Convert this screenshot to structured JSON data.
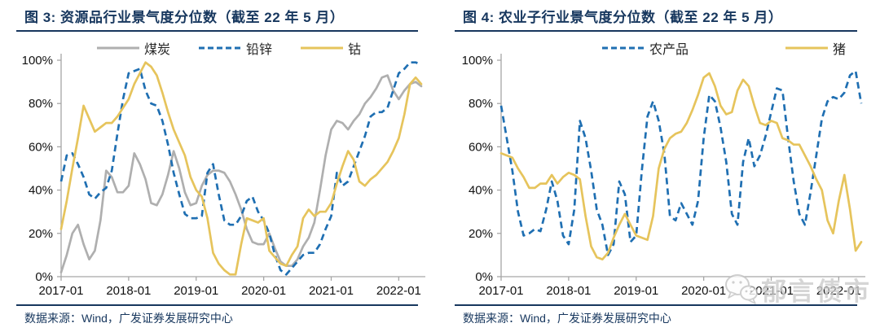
{
  "colors": {
    "title_navy": "#17375E",
    "axis_gray": "#A6A6A6",
    "tick_label": "#111111",
    "coal_gray": "#AFAFAF",
    "blue": "#1F6FB2",
    "yellow": "#E6C45C",
    "watermark_gray": "#CBCBCB"
  },
  "watermark": {
    "icon": "wechat-chat-bubbles-icon",
    "text": "郁言债市"
  },
  "chart_data": [
    {
      "type": "line",
      "title": "图 3:  资源品行业景气度分位数（截至 22 年 5 月）",
      "source": "数据来源：Wind，广发证券发展研究中心",
      "x_monthly_range": [
        "2017-01",
        "2022-05"
      ],
      "x_tick_labels": [
        "2017-01",
        "2018-01",
        "2019-01",
        "2020-01",
        "2021-01",
        "2022-01"
      ],
      "y_tick_labels": [
        "0%",
        "20%",
        "40%",
        "60%",
        "80%",
        "100%"
      ],
      "ylim": [
        0,
        100
      ],
      "grid": false,
      "legend_position": "top",
      "series": [
        {
          "name": "煤炭",
          "color": "#AFAFAF",
          "dash": "solid",
          "values": [
            2,
            10,
            20,
            24,
            15,
            8,
            12,
            26,
            49,
            46,
            39,
            39,
            42,
            57,
            52,
            45,
            34,
            33,
            38,
            47,
            58,
            50,
            39,
            33,
            34,
            42,
            47,
            49,
            49,
            48,
            44,
            38,
            31,
            22,
            16,
            15,
            15,
            20,
            13,
            7,
            5,
            5,
            8,
            14,
            18,
            25,
            40,
            56,
            68,
            72,
            71,
            68,
            72,
            75,
            80,
            83,
            87,
            92,
            93,
            86,
            82,
            86,
            89,
            90,
            88
          ]
        },
        {
          "name": "铅锌",
          "color": "#1F6FB2",
          "dash": "dashed",
          "values": [
            44,
            56,
            57,
            52,
            46,
            38,
            36,
            39,
            41,
            49,
            66,
            82,
            94,
            95,
            96,
            86,
            80,
            79,
            72,
            61,
            48,
            38,
            29,
            27,
            27,
            28,
            48,
            52,
            38,
            26,
            24,
            24,
            28,
            35,
            37,
            30,
            26,
            20,
            10,
            3,
            1,
            4,
            7,
            10,
            11,
            11,
            15,
            22,
            28,
            48,
            42,
            44,
            51,
            58,
            65,
            74,
            76,
            76,
            78,
            86,
            94,
            96,
            99,
            99,
            98
          ]
        },
        {
          "name": "钴",
          "color": "#E6C45C",
          "dash": "solid",
          "values": [
            22,
            35,
            50,
            64,
            79,
            73,
            67,
            69,
            71,
            71,
            74,
            78,
            82,
            89,
            94,
            99,
            97,
            93,
            85,
            76,
            68,
            62,
            56,
            46,
            40,
            37,
            27,
            11,
            6,
            3,
            1,
            1,
            15,
            27,
            26,
            25,
            27,
            12,
            9,
            6,
            5,
            10,
            14,
            27,
            31,
            28,
            30,
            30,
            34,
            43,
            51,
            58,
            54,
            44,
            42,
            45,
            47,
            50,
            53,
            58,
            64,
            75,
            89,
            92,
            89
          ]
        }
      ]
    },
    {
      "type": "line",
      "title": "图 4:  农业子行业景气度分位数（截至 22 年 5 月）",
      "source": "数据来源：Wind，广发证券发展研究中心",
      "x_monthly_range": [
        "2017-01",
        "2022-05"
      ],
      "x_tick_labels": [
        "2017-01",
        "2018-01",
        "2019-01",
        "2020-01",
        "2021-01",
        "2022-01"
      ],
      "y_tick_labels": [
        "0%",
        "20%",
        "40%",
        "60%",
        "80%",
        "100%"
      ],
      "ylim": [
        0,
        100
      ],
      "grid": false,
      "legend_position": "top",
      "series": [
        {
          "name": "农产品",
          "color": "#1F6FB2",
          "dash": "dashed",
          "values": [
            79,
            64,
            49,
            30,
            19,
            20,
            22,
            21,
            31,
            44,
            35,
            19,
            15,
            31,
            72,
            64,
            49,
            31,
            24,
            10,
            15,
            44,
            38,
            16,
            19,
            49,
            74,
            81,
            72,
            57,
            28,
            26,
            34,
            29,
            24,
            35,
            64,
            84,
            81,
            69,
            53,
            29,
            24,
            53,
            64,
            51,
            56,
            65,
            76,
            87,
            86,
            64,
            44,
            29,
            24,
            39,
            56,
            73,
            81,
            83,
            82,
            85,
            93,
            95,
            80
          ]
        },
        {
          "name": "猪",
          "color": "#E6C45C",
          "dash": "solid",
          "values": [
            57,
            56,
            55,
            50,
            46,
            41,
            41,
            43,
            43,
            47,
            43,
            46,
            48,
            47,
            45,
            28,
            14,
            9,
            8,
            11,
            18,
            24,
            29,
            24,
            19,
            18,
            17,
            28,
            50,
            59,
            64,
            66,
            67,
            71,
            77,
            84,
            92,
            94,
            88,
            79,
            75,
            76,
            86,
            91,
            88,
            79,
            71,
            70,
            72,
            71,
            64,
            63,
            61,
            61,
            56,
            51,
            45,
            40,
            26,
            20,
            35,
            47,
            31,
            12,
            16
          ]
        }
      ]
    }
  ]
}
